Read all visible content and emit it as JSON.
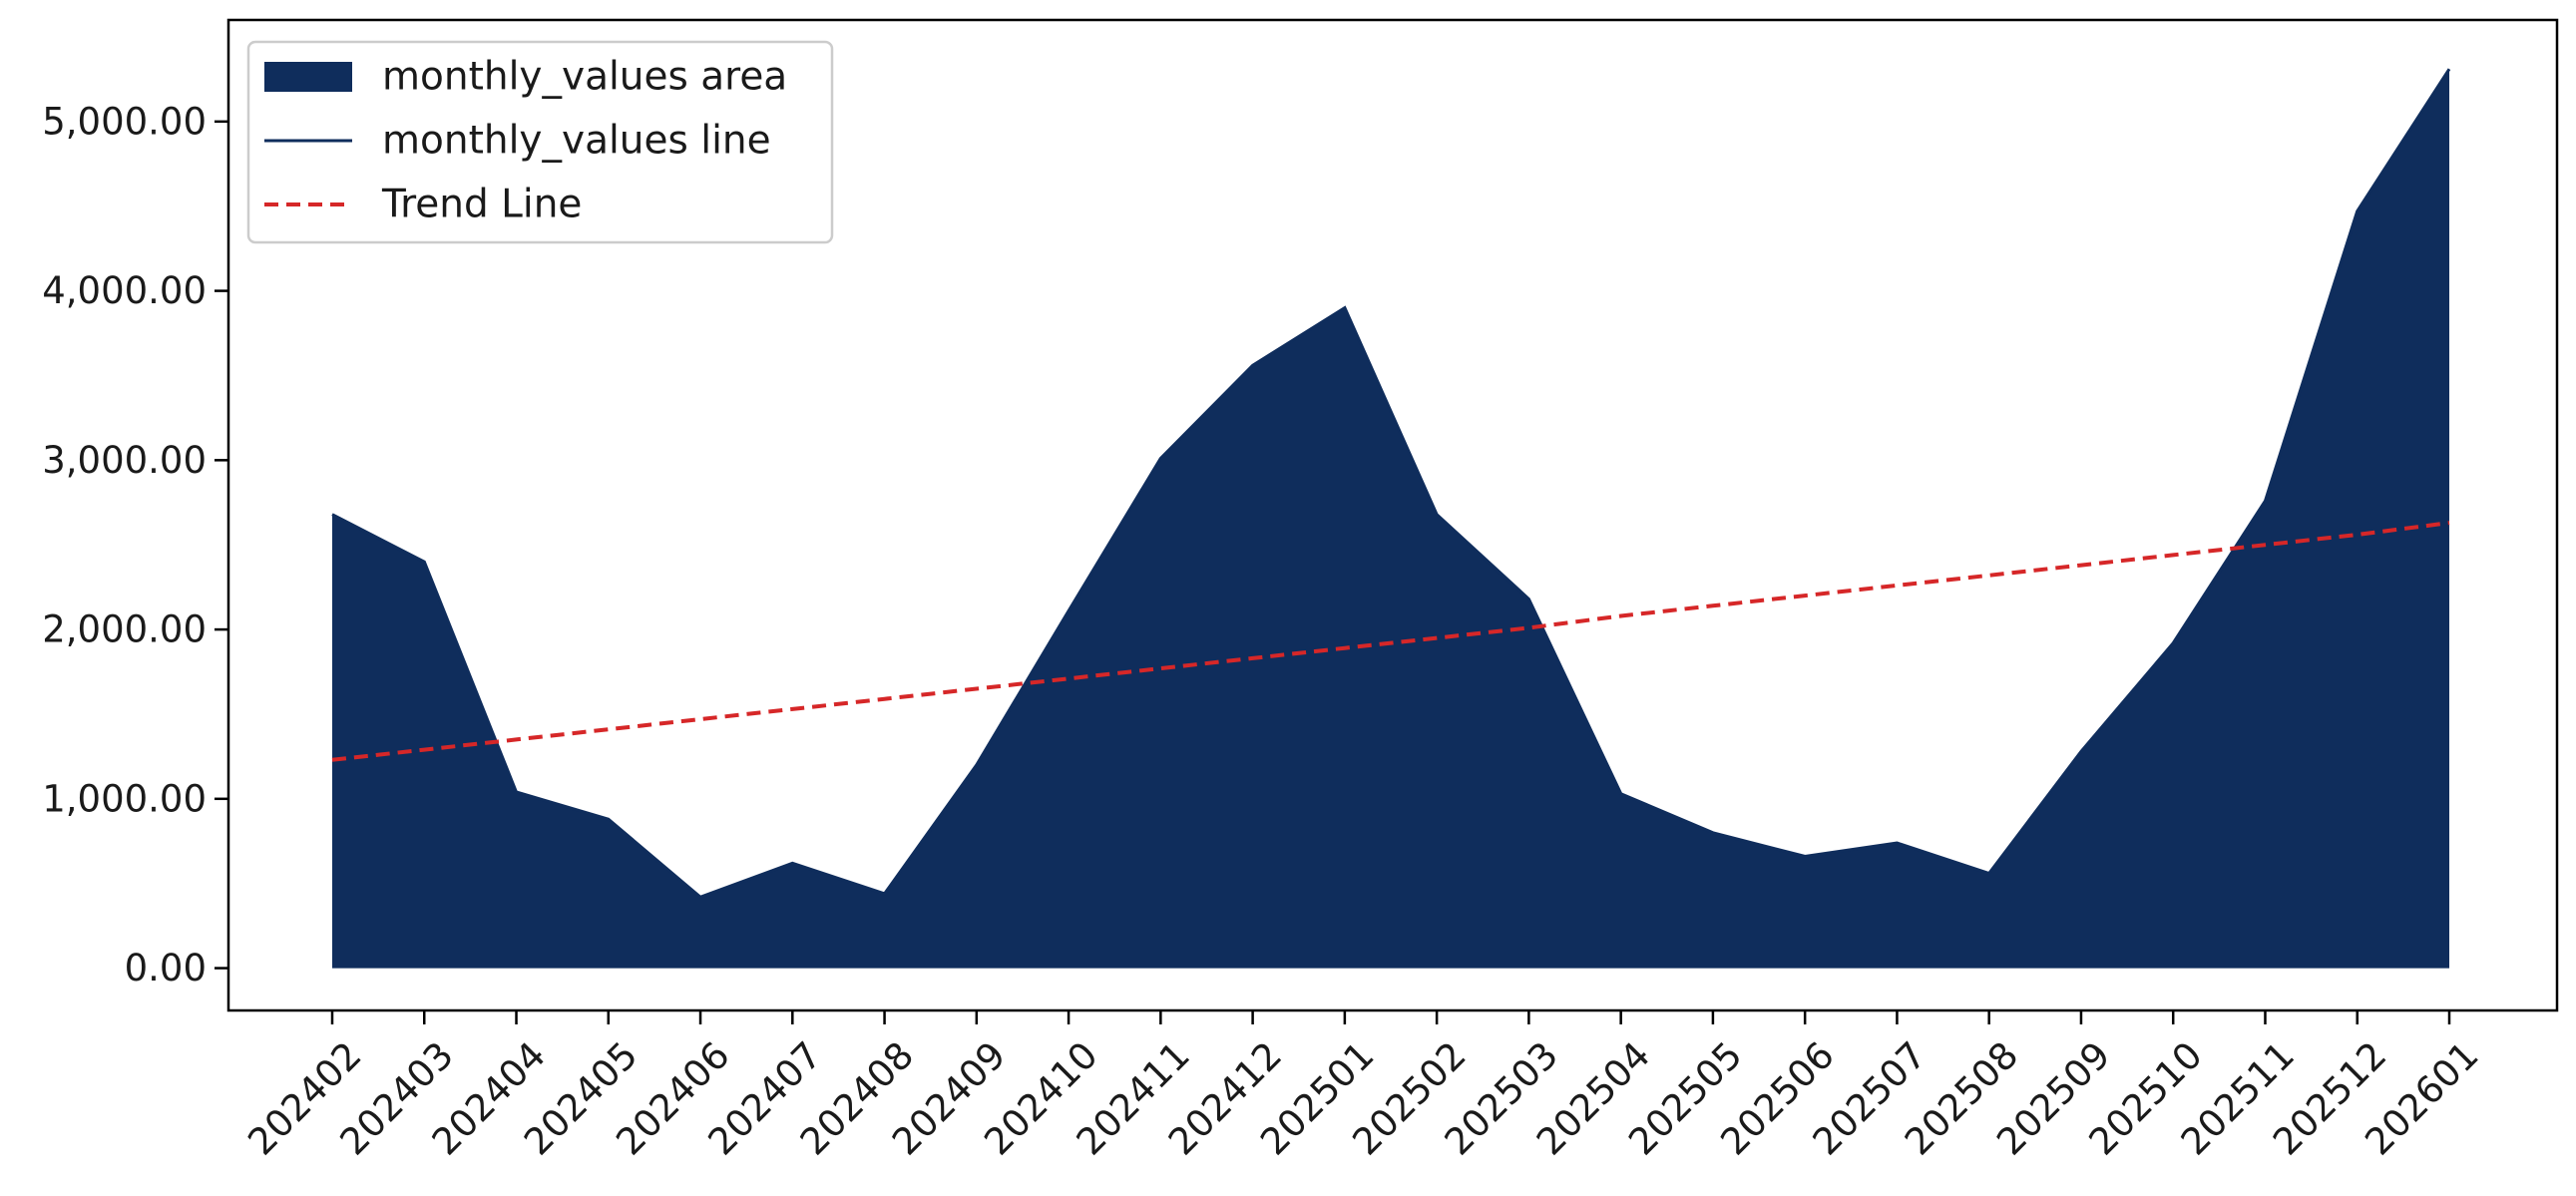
{
  "chart_data": {
    "type": "area",
    "title": "",
    "xlabel": "",
    "ylabel": "",
    "categories": [
      "202402",
      "202403",
      "202404",
      "202405",
      "202406",
      "202407",
      "202408",
      "202409",
      "202410",
      "202411",
      "202412",
      "202501",
      "202502",
      "202503",
      "202504",
      "202505",
      "202506",
      "202507",
      "202508",
      "202509",
      "202510",
      "202511",
      "202512",
      "202601"
    ],
    "series": [
      {
        "name": "monthly_values area",
        "kind": "area",
        "color": "#0f2d5c",
        "values": [
          2680,
          2400,
          1040,
          880,
          420,
          620,
          440,
          1200,
          2110,
          3010,
          3560,
          3900,
          2680,
          2180,
          1030,
          800,
          660,
          740,
          560,
          1280,
          1920,
          2760,
          4470,
          5310
        ]
      },
      {
        "name": "monthly_values line",
        "kind": "line",
        "color": "#0f2d5c",
        "values": [
          2680,
          2400,
          1040,
          880,
          420,
          620,
          440,
          1200,
          2110,
          3010,
          3560,
          3900,
          2680,
          2180,
          1030,
          800,
          660,
          740,
          560,
          1280,
          1920,
          2760,
          4470,
          5310
        ]
      },
      {
        "name": "Trend Line",
        "kind": "line",
        "style": "dashed",
        "color": "#d62728",
        "values": [
          1230,
          1290,
          1350,
          1410,
          1470,
          1530,
          1590,
          1650,
          1710,
          1770,
          1830,
          1890,
          1950,
          2010,
          2080,
          2140,
          2200,
          2260,
          2320,
          2380,
          2440,
          2500,
          2560,
          2630
        ]
      }
    ],
    "ylim": [
      -250,
      5600
    ],
    "yticks": [
      0,
      1000,
      2000,
      3000,
      4000,
      5000
    ],
    "ytick_labels": [
      "0.00",
      "1,000.00",
      "2,000.00",
      "3,000.00",
      "4,000.00",
      "5,000.00"
    ],
    "grid": false,
    "legend": {
      "placement": "top-left",
      "entries": [
        "monthly_values area",
        "monthly_values line",
        "Trend Line"
      ]
    }
  }
}
